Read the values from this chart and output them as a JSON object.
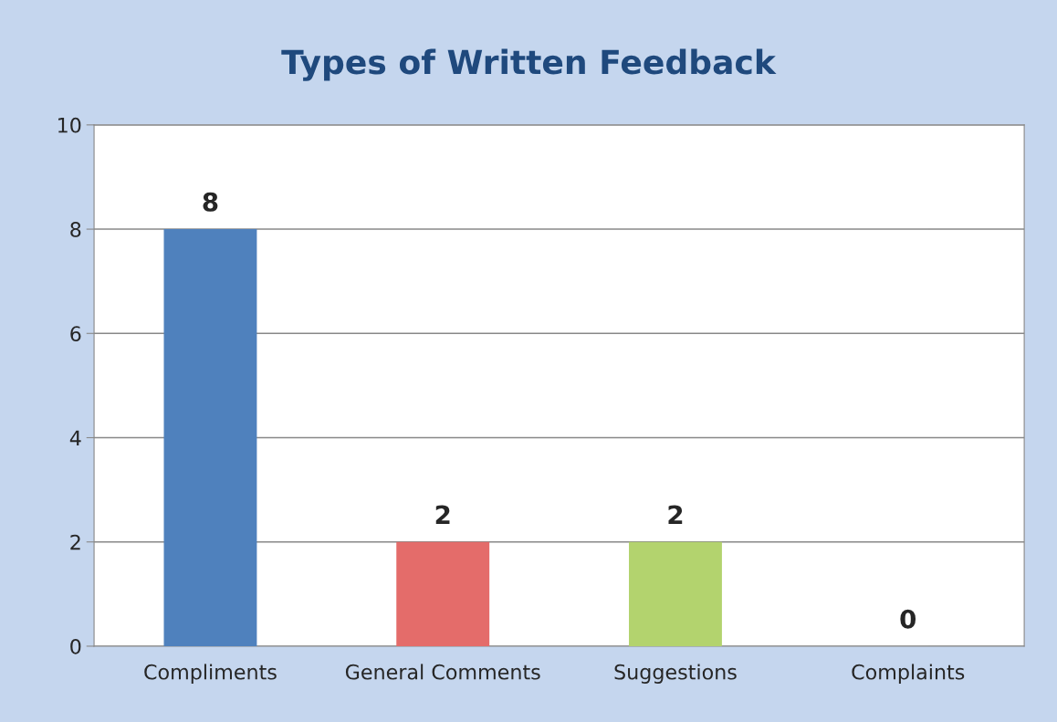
{
  "chart_data": {
    "type": "bar",
    "title": "Types of Written Feedback",
    "categories": [
      "Compliments",
      "General Comments",
      "Suggestions",
      "Complaints"
    ],
    "values": [
      8,
      2,
      2,
      0
    ],
    "colors": [
      "#4f81bd",
      "#e46c6a",
      "#b3d36e",
      "#8064a2"
    ],
    "ylim": [
      0,
      10
    ],
    "yticks": [
      0,
      2,
      4,
      6,
      8,
      10
    ],
    "grid": "y",
    "data_labels": true,
    "legend": false
  }
}
